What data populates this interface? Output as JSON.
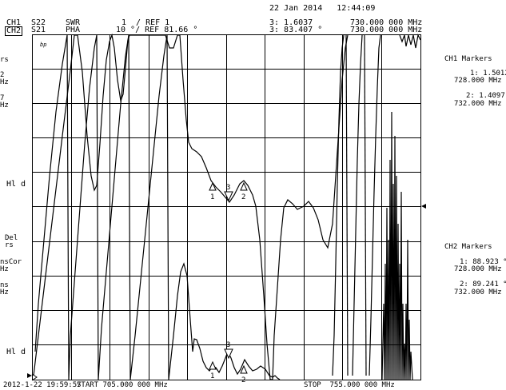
{
  "header": {
    "datetime": "22 Jan 2014   12:44:09",
    "ch1_label": "CH1",
    "ch2_label": "CH2",
    "ch1_param": "S22",
    "ch2_param": "S21",
    "ch1_format": "SWR",
    "ch2_format": "PHA",
    "ch1_scale": "1  / REF 1",
    "ch2_scale": "10 °/ REF 81.66 °",
    "ch1_active_marker": "3: 1.6037",
    "ch2_active_marker": "3: 83.407 °",
    "ch1_active_freq": "730.000 000 MHz",
    "ch2_active_freq": "730.000 000 MHz"
  },
  "left_edge": {
    "markers_frag": "rs",
    "m1_frag": "2\nHz",
    "m2_frag": "7\nHz",
    "hld_top": "Hl d",
    "del": "Del\nrs",
    "corr": "nsCor\nHz",
    "ms": "ns\nHz",
    "hld_bottom": "Hl d"
  },
  "footer": {
    "start": "2012-1-22 19:59:57",
    "center": "START 705.000 000 MHz",
    "stop": "STOP  755.000 000 MHz"
  },
  "ch1_markers": {
    "title": "CH1 Markers",
    "m1_value": "1: 1.5012",
    "m1_freq": "728.000 MHz",
    "m2_value": "2: 1.4097",
    "m2_freq": "732.000 MHz"
  },
  "ch2_markers": {
    "title": "CH2 Markers",
    "m1_value": "1: 88.923 °",
    "m1_freq": "728.000 MHz",
    "m2_value": "2: 89.241 °",
    "m2_freq": "732.000 MHz"
  },
  "marker_numbers": {
    "m1": "1",
    "m2": "2",
    "m3": "3"
  },
  "active_marker_symbol": "bp",
  "colors": {
    "trace": "#000000",
    "grid": "#000000",
    "background": "#ffffff"
  }
}
